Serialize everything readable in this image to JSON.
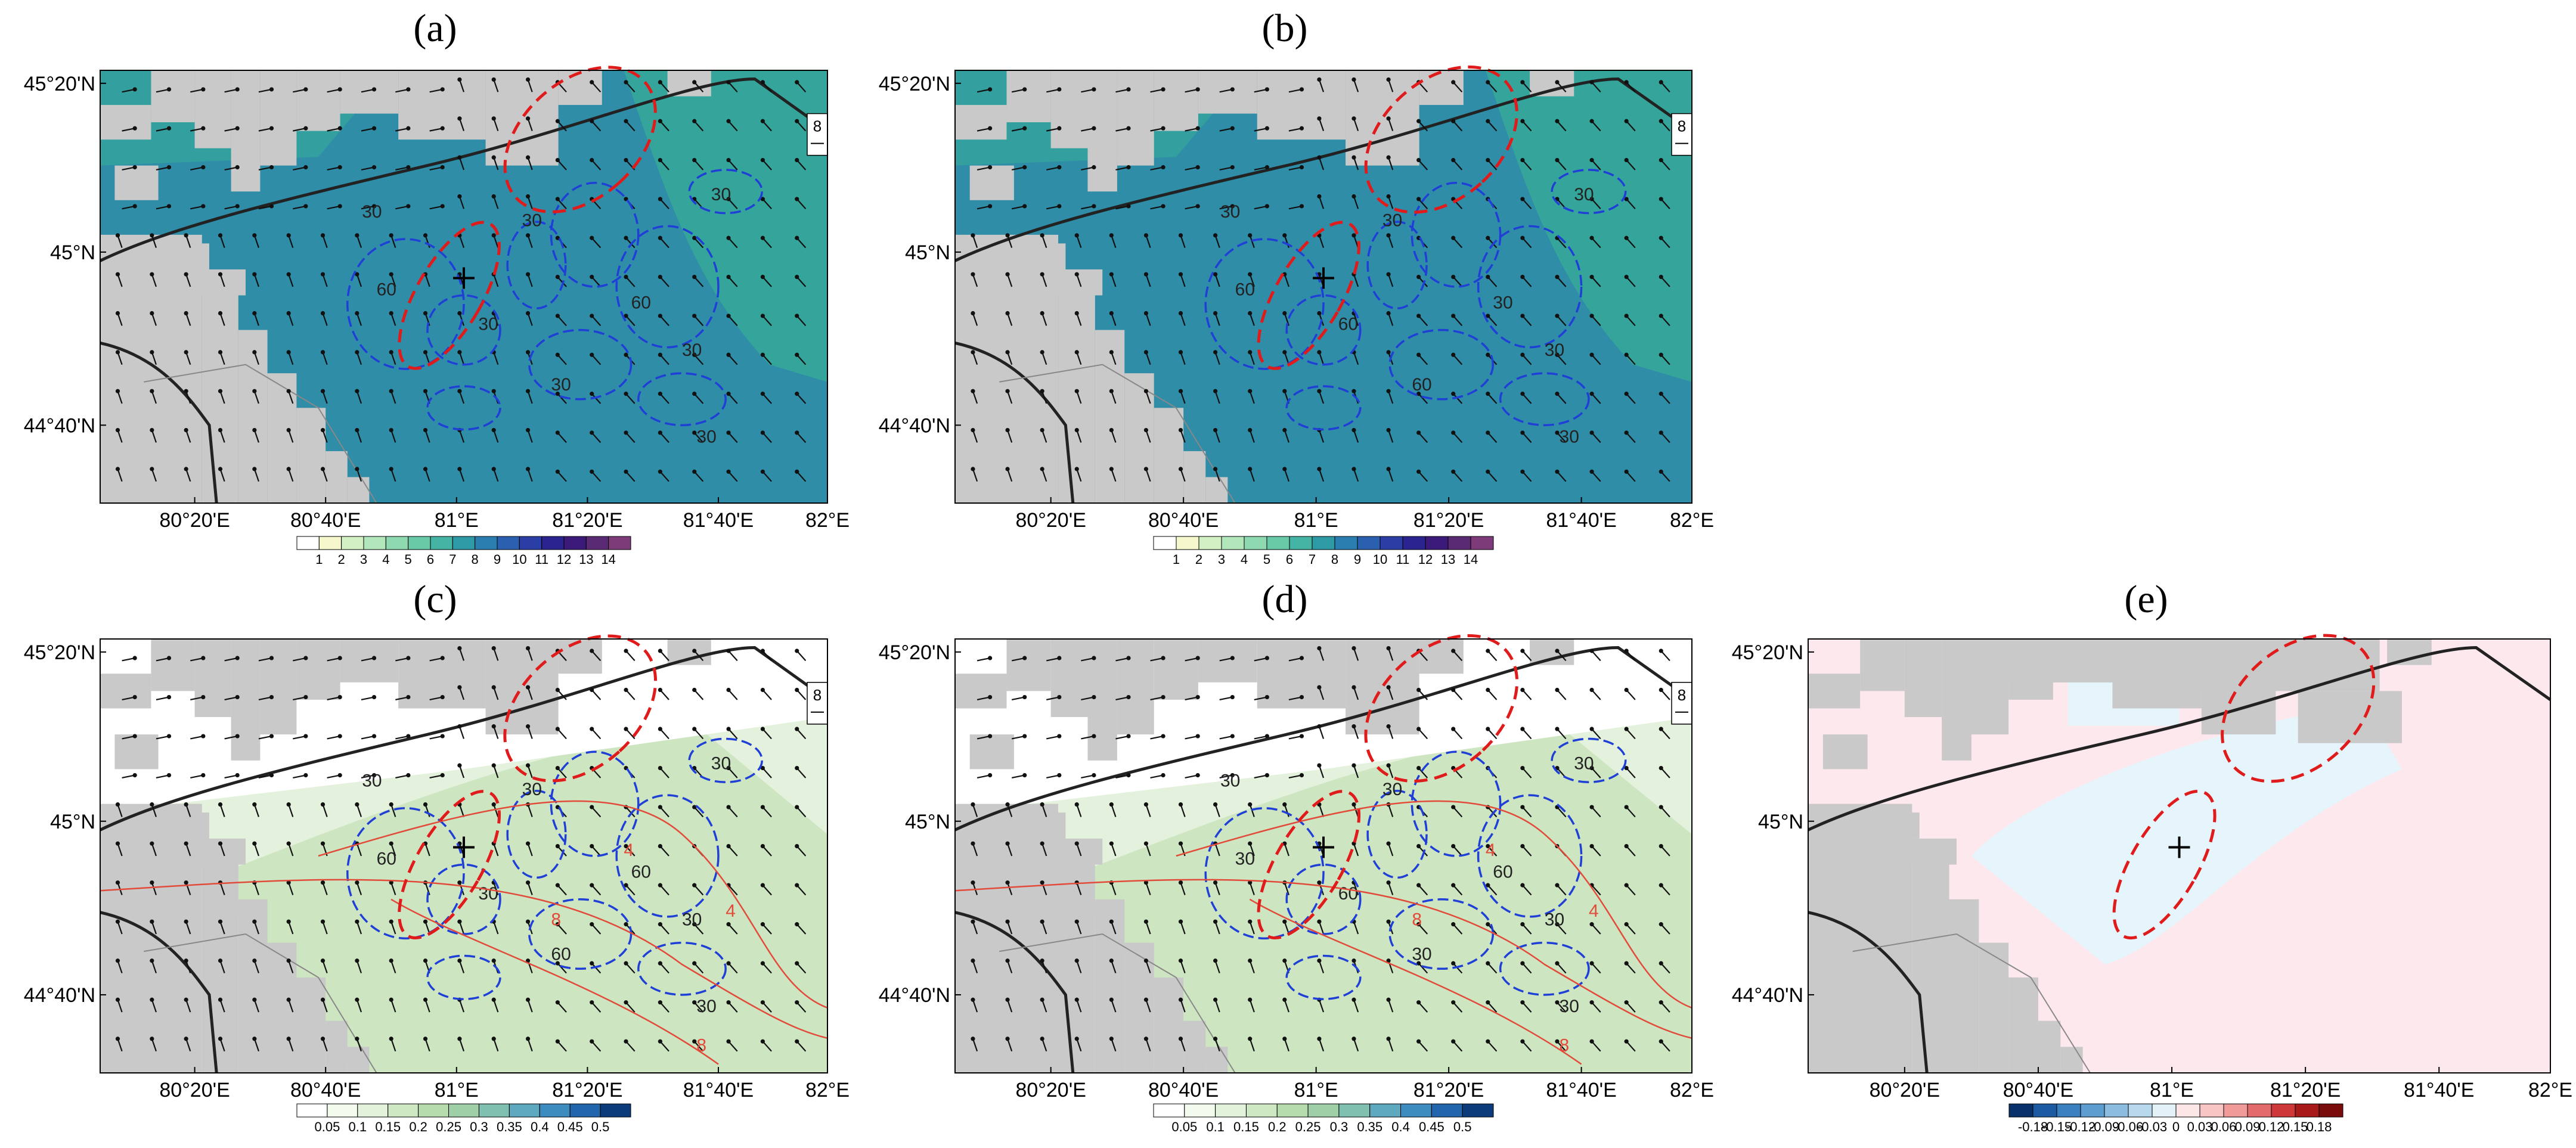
{
  "figure": {
    "panels": [
      {
        "id": "a",
        "title": "(a)",
        "lat_ticks": [
          "45°20'N",
          "45°N",
          "44°40'N"
        ],
        "lon_ticks": [
          "80°20'E",
          "80°40'E",
          "81°E",
          "81°20'E",
          "81°40'E",
          "82°E"
        ],
        "colorbar": {
          "labels": [
            "1",
            "2",
            "3",
            "4",
            "5",
            "6",
            "7",
            "8",
            "9",
            "10",
            "11",
            "12",
            "13",
            "14"
          ],
          "colors": [
            "#ffffff",
            "#f4f8cc",
            "#d3f0c4",
            "#b2e6bb",
            "#8ed9b0",
            "#68c9a7",
            "#45b4a4",
            "#2d9aa5",
            "#2a7fb0",
            "#2b5fb0",
            "#2a3ea6",
            "#2a2390",
            "#3c1a7a",
            "#5a2b74",
            "#7d3b7a"
          ]
        },
        "wind_reference": {
          "value": "8"
        },
        "contour_labels": [
          "30",
          "30",
          "60",
          "30",
          "60",
          "30",
          "30",
          "30",
          "30"
        ],
        "fill_color": "#2f8da8",
        "fill_color_2": "#35a59c"
      },
      {
        "id": "b",
        "title": "(b)",
        "lat_ticks": [
          "45°20'N",
          "45°N",
          "44°40'N"
        ],
        "lon_ticks": [
          "80°20'E",
          "80°40'E",
          "81°E",
          "81°20'E",
          "81°40'E",
          "82°E"
        ],
        "colorbar": {
          "labels": [
            "1",
            "2",
            "3",
            "4",
            "5",
            "6",
            "7",
            "8",
            "9",
            "10",
            "11",
            "12",
            "13",
            "14"
          ],
          "colors": [
            "#ffffff",
            "#f4f8cc",
            "#d3f0c4",
            "#b2e6bb",
            "#8ed9b0",
            "#68c9a7",
            "#45b4a4",
            "#2d9aa5",
            "#2a7fb0",
            "#2b5fb0",
            "#2a3ea6",
            "#2a2390",
            "#3c1a7a",
            "#5a2b74",
            "#7d3b7a"
          ]
        },
        "wind_reference": {
          "value": "8"
        },
        "contour_labels": [
          "30",
          "30",
          "60",
          "60",
          "30",
          "30",
          "60",
          "30",
          "30"
        ],
        "fill_color": "#2f8da8",
        "fill_color_2": "#35a59c"
      },
      {
        "id": "c",
        "title": "(c)",
        "lat_ticks": [
          "45°20'N",
          "45°N",
          "44°40'N"
        ],
        "lon_ticks": [
          "80°20'E",
          "80°40'E",
          "81°E",
          "81°20'E",
          "81°40'E",
          "82°E"
        ],
        "colorbar": {
          "labels": [
            "0.05",
            "0.1",
            "0.15",
            "0.2",
            "0.25",
            "0.3",
            "0.35",
            "0.4",
            "0.45",
            "0.5"
          ],
          "colors": [
            "#ffffff",
            "#f3faee",
            "#e3f2db",
            "#cfe8c4",
            "#b6dcae",
            "#9fcfa6",
            "#7fc0b0",
            "#5ea9c0",
            "#3d8cc0",
            "#2166ac",
            "#0b3b7a"
          ]
        },
        "wind_reference": {
          "value": "8"
        },
        "contour_labels": [
          "30",
          "30",
          "60",
          "30",
          "60",
          "30",
          "60",
          "30",
          "30"
        ],
        "red_labels": [
          "4",
          "8",
          "4",
          "8"
        ],
        "fill_color": "#e4f1dc",
        "fill_color_2": "#cde6c1"
      },
      {
        "id": "d",
        "title": "(d)",
        "lat_ticks": [
          "45°20'N",
          "45°N",
          "44°40'N"
        ],
        "lon_ticks": [
          "80°20'E",
          "80°40'E",
          "81°E",
          "81°20'E",
          "81°40'E",
          "82°E"
        ],
        "colorbar": {
          "labels": [
            "0.05",
            "0.1",
            "0.15",
            "0.2",
            "0.25",
            "0.3",
            "0.35",
            "0.4",
            "0.45",
            "0.5"
          ],
          "colors": [
            "#ffffff",
            "#f3faee",
            "#e3f2db",
            "#cfe8c4",
            "#b6dcae",
            "#9fcfa6",
            "#7fc0b0",
            "#5ea9c0",
            "#3d8cc0",
            "#2166ac",
            "#0b3b7a"
          ]
        },
        "wind_reference": {
          "value": "8"
        },
        "contour_labels": [
          "30",
          "30",
          "30",
          "60",
          "60",
          "30",
          "30",
          "30",
          "30"
        ],
        "red_labels": [
          "4",
          "8",
          "4",
          "8"
        ],
        "fill_color": "#e4f1dc",
        "fill_color_2": "#cde6c1"
      },
      {
        "id": "e",
        "title": "(e)",
        "lat_ticks": [
          "45°20'N",
          "45°N",
          "44°40'N"
        ],
        "lon_ticks": [
          "80°20'E",
          "80°40'E",
          "81°E",
          "81°20'E",
          "81°40'E",
          "82°E"
        ],
        "colorbar": {
          "labels": [
            "-0.18",
            "-0.15",
            "-0.12",
            "-0.09",
            "-0.06",
            "-0.03",
            "0",
            "0.03",
            "0.06",
            "0.09",
            "0.12",
            "0.15",
            "0.18"
          ],
          "colors": [
            "#08306b",
            "#1c5ba3",
            "#3a7fbf",
            "#5d9dd0",
            "#8bbde0",
            "#b8d8ee",
            "#e3f1f9",
            "#fde6e6",
            "#f8c4c4",
            "#f19a9a",
            "#e46b6b",
            "#cf3838",
            "#a81a1a",
            "#7a0c0c"
          ]
        },
        "fill_color": "#fde8ee",
        "fill_color_2": "#e6f4fb"
      }
    ]
  }
}
